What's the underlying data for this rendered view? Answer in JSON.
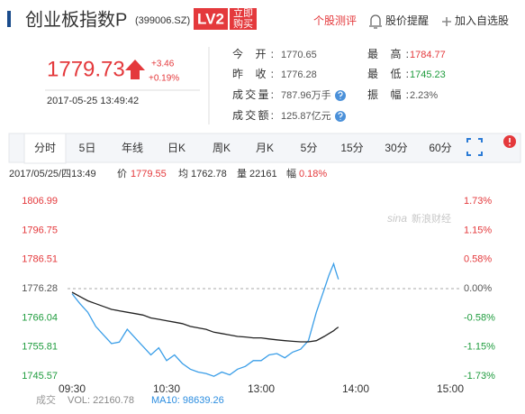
{
  "header": {
    "title": "创业板指数P",
    "code": "(399006.SZ)",
    "badge": "LV2",
    "buy": [
      "立即",
      "购买"
    ],
    "links": [
      "个股测评",
      "股价提醒",
      "加入自选股"
    ]
  },
  "quote": {
    "price": "1779.73",
    "change": "+3.46",
    "change_pct": "+0.19%",
    "time": "2017-05-25 13:49:42",
    "fields": [
      {
        "label": "今 开:",
        "value": 1770.65
      },
      {
        "label": "最 高:",
        "value": 1784.77
      },
      {
        "label": "昨 收:",
        "value": 1776.28
      },
      {
        "label": "最 低:",
        "value": 1745.23
      },
      {
        "label": "成交量:",
        "value": "787.96万手"
      },
      {
        "label": "振 幅:",
        "value": "2.23%"
      },
      {
        "label": "成交额:",
        "value": "125.87亿元"
      }
    ]
  },
  "tabs": [
    "分时",
    "5日",
    "年线",
    "日K",
    "周K",
    "月K",
    "5分",
    "15分",
    "30分",
    "60分"
  ],
  "info": [
    "2017/05/25/四13:49",
    "价",
    "1779.55",
    "均",
    "1762.78",
    "量",
    "22161",
    "幅",
    "0.18%"
  ],
  "watermark": [
    "sina",
    "新浪财经"
  ],
  "chart_data": {
    "type": "line",
    "x": [
      "09:30",
      "09:35",
      "09:40",
      "09:45",
      "09:50",
      "09:55",
      "10:00",
      "10:05",
      "10:10",
      "10:15",
      "10:20",
      "10:25",
      "10:30",
      "10:35",
      "10:40",
      "10:45",
      "10:50",
      "10:55",
      "11:00",
      "11:05",
      "11:10",
      "11:15",
      "11:20",
      "11:25",
      "11:30",
      "13:05",
      "13:10",
      "13:15",
      "13:20",
      "13:25",
      "13:30",
      "13:35",
      "13:40",
      "13:43",
      "13:46",
      "13:47",
      "13:49"
    ],
    "series": [
      {
        "color": "#3a9ee8",
        "values": [
          1774.5,
          1771,
          1768,
          1763,
          1760,
          1757,
          1757.5,
          1762,
          1759,
          1756,
          1753,
          1755.5,
          1751,
          1753,
          1750,
          1748,
          1747,
          1746.5,
          1745.5,
          1747,
          1746,
          1748,
          1749,
          1751,
          1751,
          1753,
          1753.5,
          1752,
          1754,
          1755,
          1758,
          1768,
          1776,
          1781,
          1785,
          1783,
          1779.55
        ]
      },
      {
        "color": "#222222",
        "values": [
          1775,
          1773.5,
          1772,
          1771,
          1770,
          1769,
          1768.5,
          1768,
          1767.5,
          1767,
          1766,
          1765.5,
          1765,
          1764.5,
          1764,
          1763,
          1762.5,
          1762,
          1761,
          1760.5,
          1760,
          1759.5,
          1759.3,
          1759,
          1759,
          1758.6,
          1758.3,
          1758,
          1757.8,
          1757.6,
          1757.6,
          1758,
          1759.5,
          1760.5,
          1761.5,
          1762,
          1762.78
        ]
      }
    ],
    "ylim": [
      1745.57,
      1806.99
    ],
    "yticks": [
      1806.99,
      1796.75,
      1786.51,
      1776.28,
      1766.04,
      1755.81,
      1745.57
    ],
    "y2lim": [
      -1.73,
      1.73
    ],
    "y2ticks": [
      {
        "value": 1.73,
        "label": "1.73%"
      },
      {
        "value": 1.15,
        "label": "1.15%"
      },
      {
        "value": 0.58,
        "label": "0.58%"
      },
      {
        "value": 0,
        "label": "0.00%"
      },
      {
        "value": -0.58,
        "label": "-0.58%"
      },
      {
        "value": -1.15,
        "label": "-1.15%"
      },
      {
        "value": -1.73,
        "label": "-1.73%"
      }
    ],
    "xticks": [
      "09:30",
      "10:30",
      "13:00",
      "14:00",
      "15:00"
    ]
  },
  "volume": {
    "label": "成交",
    "vol": "VOL: 22160.78",
    "ma10": "MA10: 98639.26"
  }
}
